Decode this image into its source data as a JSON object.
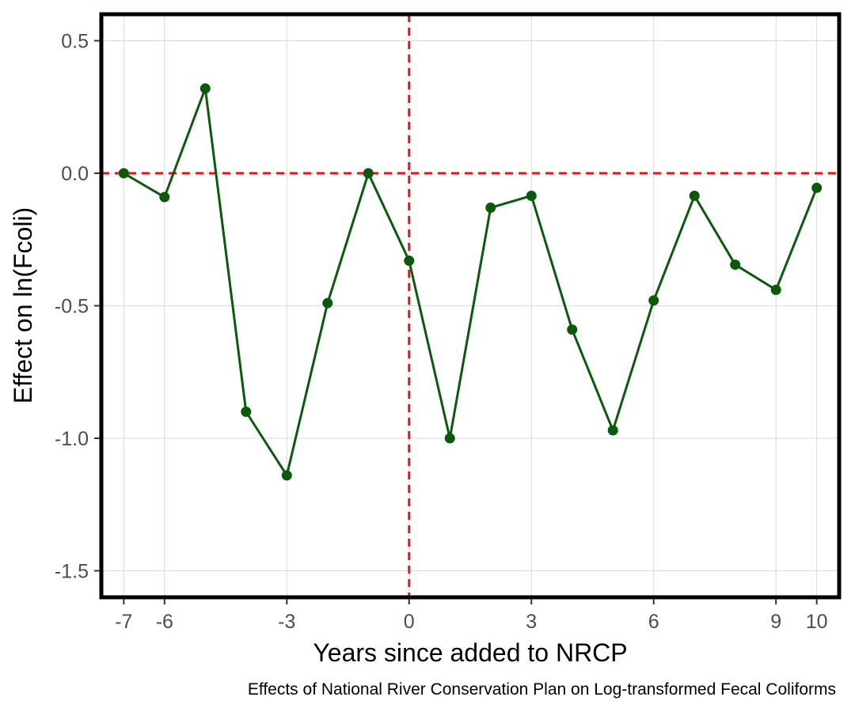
{
  "chart_data": {
    "type": "line",
    "title": "",
    "caption": "Effects of National River Conservation Plan on Log-transformed Fecal Coliforms",
    "xlabel": "Years since added to NRCP",
    "ylabel": "Effect on ln(Fcoli)",
    "xlim": [
      -7.55,
      10.55
    ],
    "ylim": [
      -1.6,
      0.6
    ],
    "x_ticks": [
      -7,
      -6,
      -3,
      0,
      3,
      6,
      9,
      10
    ],
    "y_ticks": [
      0.5,
      0.0,
      -0.5,
      -1.0,
      -1.5
    ],
    "y_tick_labels": [
      "0.5",
      "0.0",
      "-0.5",
      "-1.0",
      "-1.5"
    ],
    "grid": true,
    "reference_lines": {
      "x": 0,
      "y": 0,
      "color": "#ee1111",
      "style": "dashed"
    },
    "series": [
      {
        "color": "#0b5a0b",
        "x": [
          -7,
          -6,
          -5,
          -4,
          -3,
          -2,
          -1,
          0,
          1,
          2,
          3,
          4,
          5,
          6,
          7,
          8,
          9,
          10
        ],
        "y": [
          0.0,
          -0.09,
          0.32,
          -0.9,
          -1.14,
          -0.49,
          0.0,
          -0.33,
          -1.0,
          -0.13,
          -0.085,
          -0.59,
          -0.97,
          -0.48,
          -0.085,
          -0.345,
          -0.44,
          -0.055
        ]
      }
    ]
  }
}
